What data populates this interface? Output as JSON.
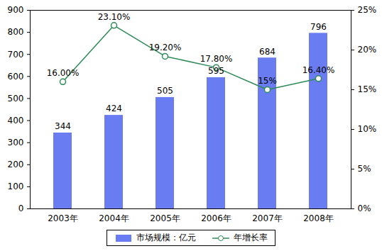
{
  "chart_data": {
    "type": "bar",
    "categories": [
      "2003年",
      "2004年",
      "2005年",
      "2006年",
      "2007年",
      "2008年"
    ],
    "series": [
      {
        "name": "市场规模：亿元",
        "type": "bar",
        "color": "#6a7cf2",
        "values": [
          344,
          424,
          505,
          595,
          684,
          796
        ]
      },
      {
        "name": "年增长率",
        "type": "line",
        "axis": "y2",
        "color": "#2e8b57",
        "marker": "circle",
        "values": [
          16.0,
          23.1,
          19.2,
          17.8,
          15.0,
          16.4
        ],
        "value_labels": [
          "16.00%",
          "23.10%",
          "19.20%",
          "17.80%",
          "15%",
          "16.40%"
        ]
      }
    ],
    "ylim": [
      0,
      900
    ],
    "yticks": [
      0,
      100,
      200,
      300,
      400,
      500,
      600,
      700,
      800,
      900
    ],
    "y2lim": [
      0,
      25
    ],
    "y2ticks": [
      {
        "value": 0,
        "label": "0%"
      },
      {
        "value": 5,
        "label": "5%"
      },
      {
        "value": 10,
        "label": "10%"
      },
      {
        "value": 15,
        "label": "15%"
      },
      {
        "value": 20,
        "label": "20%"
      },
      {
        "value": 25,
        "label": "25%"
      }
    ],
    "data_labels": true,
    "grid": false,
    "legend": "bottom"
  }
}
